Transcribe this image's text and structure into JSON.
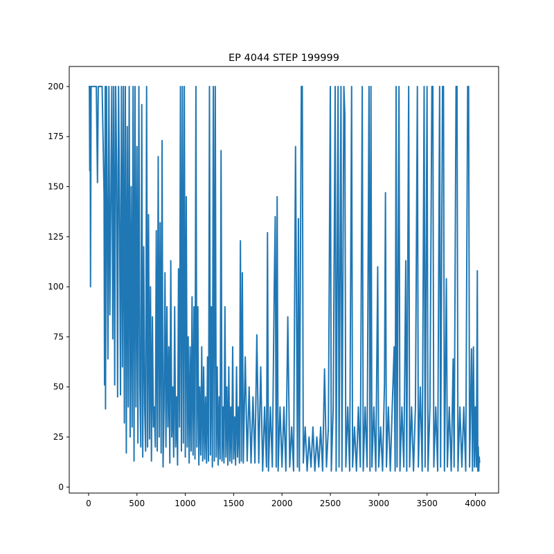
{
  "chart_data": {
    "type": "line",
    "title": "EP 4044 STEP 199999",
    "xlabel": "",
    "ylabel": "",
    "xlim": [
      -200,
      4240
    ],
    "ylim": [
      -3,
      210
    ],
    "grid": false,
    "x_ticks": [
      0,
      500,
      1000,
      1500,
      2000,
      2500,
      3000,
      3500,
      4000
    ],
    "y_ticks": [
      0,
      25,
      50,
      75,
      100,
      125,
      150,
      175,
      200
    ],
    "episodes": 4044,
    "series": [
      {
        "color": "#1f77b4",
        "points": [
          [
            0,
            200
          ],
          [
            8,
            200
          ],
          [
            12,
            158
          ],
          [
            16,
            200
          ],
          [
            20,
            100
          ],
          [
            26,
            200
          ],
          [
            40,
            200
          ],
          [
            60,
            200
          ],
          [
            80,
            200
          ],
          [
            92,
            152
          ],
          [
            100,
            200
          ],
          [
            140,
            200
          ],
          [
            160,
            146
          ],
          [
            165,
            51
          ],
          [
            172,
            200
          ],
          [
            175,
            39
          ],
          [
            185,
            200
          ],
          [
            200,
            64
          ],
          [
            210,
            200
          ],
          [
            220,
            86
          ],
          [
            240,
            200
          ],
          [
            250,
            74
          ],
          [
            260,
            200
          ],
          [
            270,
            51
          ],
          [
            280,
            200
          ],
          [
            290,
            160
          ],
          [
            300,
            45
          ],
          [
            310,
            200
          ],
          [
            320,
            140
          ],
          [
            330,
            46
          ],
          [
            340,
            200
          ],
          [
            350,
            60
          ],
          [
            360,
            200
          ],
          [
            370,
            32
          ],
          [
            380,
            200
          ],
          [
            390,
            17
          ],
          [
            400,
            180
          ],
          [
            410,
            40
          ],
          [
            420,
            200
          ],
          [
            430,
            25
          ],
          [
            440,
            150
          ],
          [
            450,
            30
          ],
          [
            460,
            200
          ],
          [
            470,
            13
          ],
          [
            480,
            200
          ],
          [
            490,
            40
          ],
          [
            500,
            170
          ],
          [
            510,
            22
          ],
          [
            520,
            200
          ],
          [
            530,
            50
          ],
          [
            540,
            20
          ],
          [
            550,
            191
          ],
          [
            560,
            15
          ],
          [
            570,
            120
          ],
          [
            580,
            40
          ],
          [
            590,
            18
          ],
          [
            600,
            200
          ],
          [
            610,
            20
          ],
          [
            620,
            136
          ],
          [
            630,
            24
          ],
          [
            640,
            100
          ],
          [
            650,
            13
          ],
          [
            660,
            85
          ],
          [
            670,
            30
          ],
          [
            680,
            40
          ],
          [
            690,
            20
          ],
          [
            700,
            128
          ],
          [
            710,
            18
          ],
          [
            720,
            165
          ],
          [
            730,
            25
          ],
          [
            740,
            132
          ],
          [
            750,
            17
          ],
          [
            760,
            173
          ],
          [
            770,
            10
          ],
          [
            780,
            40
          ],
          [
            790,
            107
          ],
          [
            800,
            20
          ],
          [
            810,
            90
          ],
          [
            820,
            30
          ],
          [
            830,
            70
          ],
          [
            840,
            12
          ],
          [
            850,
            113
          ],
          [
            860,
            25
          ],
          [
            870,
            50
          ],
          [
            880,
            15
          ],
          [
            890,
            90
          ],
          [
            900,
            20
          ],
          [
            910,
            45
          ],
          [
            920,
            11
          ],
          [
            930,
            109
          ],
          [
            940,
            30
          ],
          [
            950,
            200
          ],
          [
            960,
            18
          ],
          [
            970,
            200
          ],
          [
            980,
            22
          ],
          [
            990,
            200
          ],
          [
            1000,
            15
          ],
          [
            1010,
            145
          ],
          [
            1020,
            20
          ],
          [
            1030,
            75
          ],
          [
            1040,
            12
          ],
          [
            1050,
            70
          ],
          [
            1060,
            18
          ],
          [
            1070,
            95
          ],
          [
            1080,
            16
          ],
          [
            1090,
            90
          ],
          [
            1100,
            14
          ],
          [
            1110,
            200
          ],
          [
            1120,
            20
          ],
          [
            1130,
            90
          ],
          [
            1140,
            11
          ],
          [
            1150,
            50
          ],
          [
            1160,
            16
          ],
          [
            1170,
            70
          ],
          [
            1180,
            13
          ],
          [
            1190,
            60
          ],
          [
            1200,
            14
          ],
          [
            1210,
            45
          ],
          [
            1220,
            12
          ],
          [
            1230,
            65
          ],
          [
            1240,
            13
          ],
          [
            1250,
            200
          ],
          [
            1260,
            16
          ],
          [
            1270,
            90
          ],
          [
            1280,
            10
          ],
          [
            1290,
            200
          ],
          [
            1300,
            13
          ],
          [
            1310,
            200
          ],
          [
            1320,
            15
          ],
          [
            1330,
            60
          ],
          [
            1340,
            11
          ],
          [
            1350,
            45
          ],
          [
            1360,
            14
          ],
          [
            1370,
            168
          ],
          [
            1380,
            13
          ],
          [
            1390,
            40
          ],
          [
            1400,
            12
          ],
          [
            1410,
            90
          ],
          [
            1420,
            15
          ],
          [
            1430,
            50
          ],
          [
            1440,
            11
          ],
          [
            1450,
            60
          ],
          [
            1460,
            13
          ],
          [
            1470,
            40
          ],
          [
            1480,
            12
          ],
          [
            1490,
            70
          ],
          [
            1500,
            14
          ],
          [
            1510,
            35
          ],
          [
            1520,
            11
          ],
          [
            1530,
            60
          ],
          [
            1540,
            15
          ],
          [
            1550,
            40
          ],
          [
            1560,
            12
          ],
          [
            1570,
            123
          ],
          [
            1580,
            13
          ],
          [
            1590,
            107
          ],
          [
            1600,
            12
          ],
          [
            1620,
            65
          ],
          [
            1640,
            13
          ],
          [
            1660,
            50
          ],
          [
            1680,
            12
          ],
          [
            1700,
            45
          ],
          [
            1720,
            12
          ],
          [
            1740,
            76
          ],
          [
            1760,
            12
          ],
          [
            1780,
            60
          ],
          [
            1800,
            8
          ],
          [
            1820,
            40
          ],
          [
            1840,
            10
          ],
          [
            1850,
            127
          ],
          [
            1860,
            8
          ],
          [
            1880,
            40
          ],
          [
            1900,
            10
          ],
          [
            1920,
            100
          ],
          [
            1930,
            135
          ],
          [
            1940,
            10
          ],
          [
            1950,
            145
          ],
          [
            1960,
            8
          ],
          [
            1980,
            40
          ],
          [
            2000,
            10
          ],
          [
            2020,
            40
          ],
          [
            2040,
            8
          ],
          [
            2060,
            85
          ],
          [
            2080,
            10
          ],
          [
            2100,
            30
          ],
          [
            2120,
            8
          ],
          [
            2140,
            170
          ],
          [
            2160,
            10
          ],
          [
            2170,
            134
          ],
          [
            2180,
            8
          ],
          [
            2200,
            200
          ],
          [
            2210,
            200
          ],
          [
            2220,
            12
          ],
          [
            2240,
            30
          ],
          [
            2260,
            8
          ],
          [
            2280,
            25
          ],
          [
            2300,
            10
          ],
          [
            2320,
            30
          ],
          [
            2340,
            8
          ],
          [
            2360,
            25
          ],
          [
            2380,
            10
          ],
          [
            2400,
            30
          ],
          [
            2420,
            8
          ],
          [
            2440,
            59
          ],
          [
            2460,
            10
          ],
          [
            2480,
            30
          ],
          [
            2500,
            200
          ],
          [
            2510,
            8
          ],
          [
            2530,
            40
          ],
          [
            2550,
            200
          ],
          [
            2560,
            8
          ],
          [
            2580,
            200
          ],
          [
            2590,
            10
          ],
          [
            2610,
            200
          ],
          [
            2620,
            8
          ],
          [
            2640,
            200
          ],
          [
            2650,
            186
          ],
          [
            2660,
            10
          ],
          [
            2680,
            40
          ],
          [
            2700,
            8
          ],
          [
            2720,
            200
          ],
          [
            2730,
            10
          ],
          [
            2750,
            30
          ],
          [
            2770,
            8
          ],
          [
            2790,
            40
          ],
          [
            2810,
            10
          ],
          [
            2830,
            200
          ],
          [
            2840,
            8
          ],
          [
            2860,
            40
          ],
          [
            2880,
            10
          ],
          [
            2900,
            200
          ],
          [
            2910,
            8
          ],
          [
            2920,
            200
          ],
          [
            2930,
            10
          ],
          [
            2950,
            40
          ],
          [
            2970,
            8
          ],
          [
            2990,
            110
          ],
          [
            3000,
            10
          ],
          [
            3020,
            30
          ],
          [
            3040,
            8
          ],
          [
            3060,
            52
          ],
          [
            3070,
            147
          ],
          [
            3080,
            10
          ],
          [
            3100,
            40
          ],
          [
            3120,
            8
          ],
          [
            3140,
            40
          ],
          [
            3160,
            70
          ],
          [
            3170,
            8
          ],
          [
            3180,
            200
          ],
          [
            3190,
            10
          ],
          [
            3210,
            200
          ],
          [
            3220,
            8
          ],
          [
            3240,
            40
          ],
          [
            3260,
            10
          ],
          [
            3280,
            113
          ],
          [
            3290,
            8
          ],
          [
            3310,
            200
          ],
          [
            3320,
            10
          ],
          [
            3340,
            40
          ],
          [
            3360,
            8
          ],
          [
            3380,
            40
          ],
          [
            3400,
            200
          ],
          [
            3410,
            10
          ],
          [
            3430,
            50
          ],
          [
            3450,
            8
          ],
          [
            3470,
            200
          ],
          [
            3480,
            10
          ],
          [
            3500,
            200
          ],
          [
            3510,
            8
          ],
          [
            3530,
            40
          ],
          [
            3550,
            200
          ],
          [
            3560,
            200
          ],
          [
            3570,
            10
          ],
          [
            3590,
            40
          ],
          [
            3610,
            8
          ],
          [
            3630,
            200
          ],
          [
            3640,
            10
          ],
          [
            3660,
            200
          ],
          [
            3670,
            200
          ],
          [
            3680,
            8
          ],
          [
            3700,
            104
          ],
          [
            3710,
            10
          ],
          [
            3730,
            40
          ],
          [
            3750,
            8
          ],
          [
            3770,
            64
          ],
          [
            3780,
            10
          ],
          [
            3800,
            200
          ],
          [
            3810,
            200
          ],
          [
            3820,
            8
          ],
          [
            3840,
            40
          ],
          [
            3860,
            10
          ],
          [
            3880,
            40
          ],
          [
            3900,
            8
          ],
          [
            3920,
            200
          ],
          [
            3930,
            200
          ],
          [
            3940,
            10
          ],
          [
            3960,
            69
          ],
          [
            3970,
            8
          ],
          [
            3980,
            70
          ],
          [
            3990,
            10
          ],
          [
            4000,
            40
          ],
          [
            4010,
            10
          ],
          [
            4020,
            108
          ],
          [
            4025,
            8
          ],
          [
            4030,
            20
          ],
          [
            4035,
            8
          ],
          [
            4040,
            15
          ],
          [
            4044,
            12
          ]
        ]
      }
    ]
  }
}
